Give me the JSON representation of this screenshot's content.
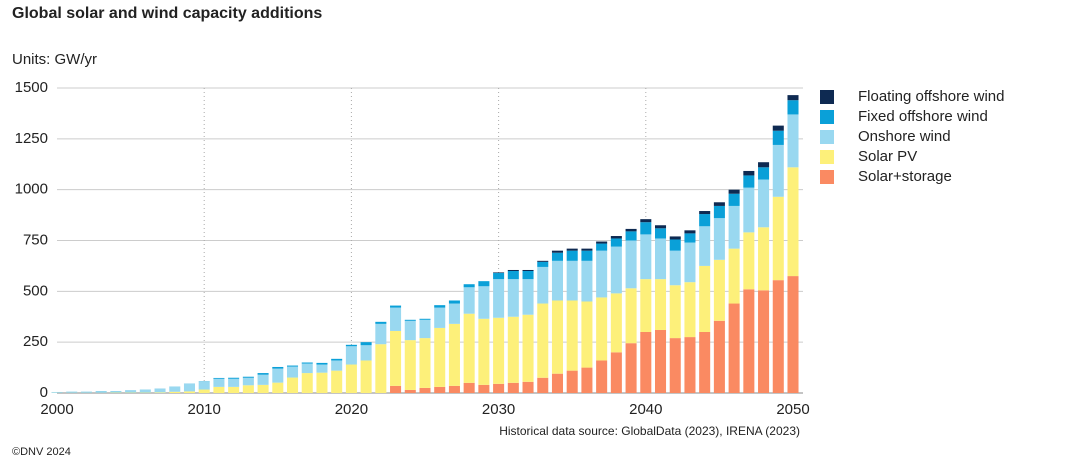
{
  "chart_data": {
    "type": "stacked_bar",
    "title": "Global solar and wind capacity additions",
    "y_label": "Units: GW/yr",
    "source": "Historical data source: GlobalData (2023), IRENA (2023)",
    "footer": "©DNV 2024",
    "x": [
      2000,
      2001,
      2002,
      2003,
      2004,
      2005,
      2006,
      2007,
      2008,
      2009,
      2010,
      2011,
      2012,
      2013,
      2014,
      2015,
      2016,
      2017,
      2018,
      2019,
      2020,
      2021,
      2022,
      2023,
      2024,
      2025,
      2026,
      2027,
      2028,
      2029,
      2030,
      2031,
      2032,
      2033,
      2034,
      2035,
      2036,
      2037,
      2038,
      2039,
      2040,
      2041,
      2042,
      2043,
      2044,
      2045,
      2046,
      2047,
      2048,
      2049,
      2050
    ],
    "xlim": [
      2000,
      2050
    ],
    "xticks": [
      2000,
      2010,
      2020,
      2030,
      2040,
      2050
    ],
    "ylim": [
      0,
      1500
    ],
    "yticks": [
      0,
      250,
      500,
      750,
      1000,
      1250,
      1500
    ],
    "grid": true,
    "legend": "right",
    "series": [
      {
        "name": "Floating offshore wind",
        "color": "#0e2a52",
        "values": [
          0,
          0,
          0,
          0,
          0,
          0,
          0,
          0,
          0,
          0,
          0,
          0,
          0,
          0,
          0,
          0,
          0,
          0,
          0,
          0,
          0,
          0,
          0,
          0,
          0,
          0,
          0,
          0,
          0,
          0,
          3,
          5,
          5,
          5,
          10,
          10,
          10,
          10,
          12,
          12,
          15,
          15,
          15,
          15,
          15,
          18,
          20,
          22,
          25,
          25,
          25
        ]
      },
      {
        "name": "Fixed offshore wind",
        "color": "#0aa0d8",
        "values": [
          0,
          0,
          0,
          1,
          1,
          1,
          1,
          1,
          1,
          1,
          2,
          4,
          5,
          5,
          8,
          8,
          5,
          5,
          8,
          8,
          7,
          15,
          10,
          10,
          5,
          5,
          12,
          15,
          15,
          25,
          30,
          40,
          40,
          25,
          40,
          50,
          50,
          35,
          40,
          45,
          60,
          50,
          55,
          45,
          60,
          60,
          60,
          60,
          60,
          70,
          70
        ]
      },
      {
        "name": "Onshore wind",
        "color": "#99d8f0",
        "values": [
          4,
          6,
          6,
          7,
          6,
          10,
          13,
          17,
          24,
          37,
          38,
          40,
          40,
          37,
          50,
          69,
          54,
          47,
          40,
          50,
          90,
          75,
          100,
          115,
          95,
          90,
          100,
          100,
          130,
          160,
          190,
          185,
          175,
          180,
          195,
          195,
          200,
          230,
          230,
          235,
          220,
          200,
          170,
          195,
          195,
          205,
          210,
          220,
          235,
          255,
          260
        ]
      },
      {
        "name": "Solar PV",
        "color": "#fdf07a",
        "values": [
          1,
          1,
          1,
          1,
          2,
          2,
          2,
          3,
          6,
          8,
          17,
          30,
          30,
          38,
          40,
          51,
          76,
          98,
          100,
          110,
          140,
          160,
          240,
          270,
          245,
          245,
          290,
          305,
          340,
          325,
          325,
          325,
          330,
          365,
          360,
          345,
          325,
          310,
          290,
          270,
          260,
          250,
          260,
          270,
          325,
          300,
          270,
          280,
          310,
          410,
          535
        ]
      },
      {
        "name": "Solar+storage",
        "color": "#fa8a62",
        "values": [
          0,
          0,
          0,
          0,
          0,
          0,
          0,
          0,
          0,
          0,
          0,
          0,
          0,
          0,
          0,
          0,
          0,
          0,
          0,
          0,
          0,
          0,
          0,
          35,
          15,
          25,
          30,
          35,
          50,
          40,
          45,
          50,
          55,
          75,
          95,
          110,
          125,
          160,
          200,
          245,
          300,
          310,
          270,
          275,
          300,
          355,
          440,
          510,
          505,
          555,
          575
        ]
      }
    ]
  }
}
